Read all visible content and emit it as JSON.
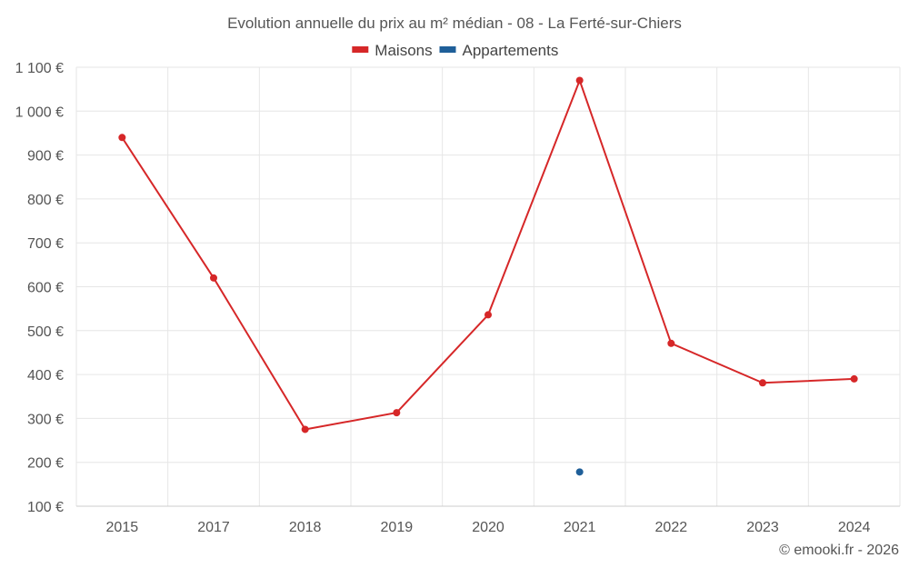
{
  "chart_data": {
    "type": "line",
    "title": "Evolution annuelle du prix au m² médian - 08 - La Ferté-sur-Chiers",
    "categories": [
      "2015",
      "2017",
      "2018",
      "2019",
      "2020",
      "2021",
      "2022",
      "2023",
      "2024"
    ],
    "series": [
      {
        "name": "Maisons",
        "color": "#d62728",
        "values": [
          940,
          620,
          275,
          313,
          536,
          1070,
          471,
          381,
          390
        ]
      },
      {
        "name": "Appartements",
        "color": "#1f5f99",
        "values": [
          null,
          null,
          null,
          null,
          null,
          178,
          null,
          null,
          null
        ]
      }
    ],
    "ylim": [
      100,
      1100
    ],
    "yticks": [
      100,
      200,
      300,
      400,
      500,
      600,
      700,
      800,
      900,
      1000,
      1100
    ],
    "ytick_labels": [
      "100 €",
      "200 €",
      "300 €",
      "400 €",
      "500 €",
      "600 €",
      "700 €",
      "800 €",
      "900 €",
      "1 000 €",
      "1 100 €"
    ],
    "grid": true,
    "legend_position": "top-center",
    "credit": "© emooki.fr - 2026"
  }
}
